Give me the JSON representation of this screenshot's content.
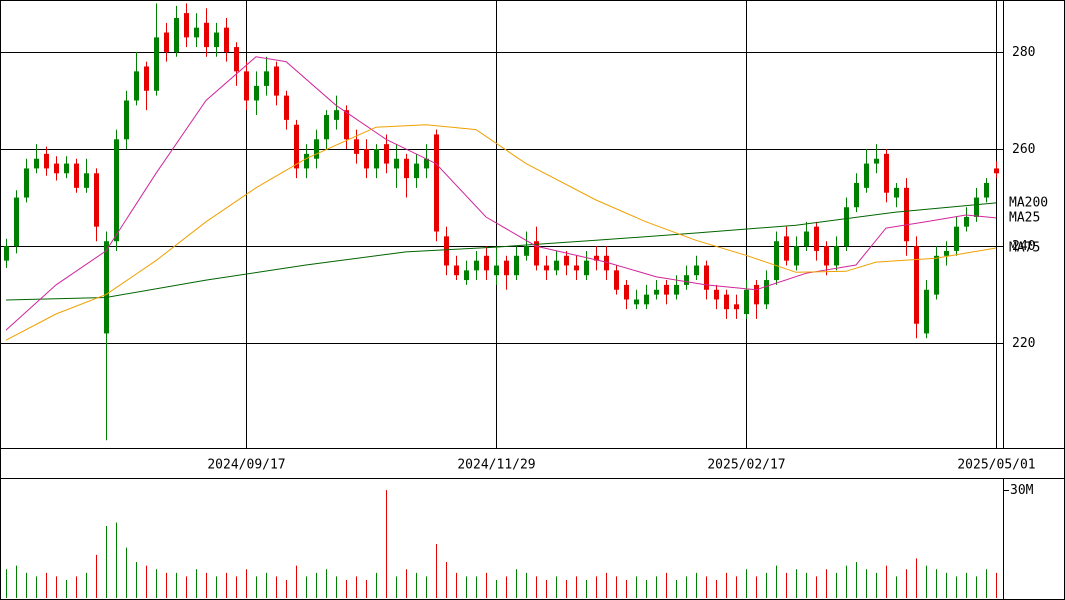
{
  "chart_data": {
    "type": "candlestick",
    "xlim": [
      -0.6,
      99.7
    ],
    "xticks": [
      {
        "value": 24,
        "label": "2024/09/17"
      },
      {
        "value": 49,
        "label": "2024/11/29"
      },
      {
        "value": 74,
        "label": "2025/02/17"
      },
      {
        "value": 99,
        "label": "2025/05/01"
      }
    ],
    "ylim": [
      198.4,
      290.7
    ],
    "yticks": [
      220,
      240,
      260,
      280
    ],
    "grid": true,
    "up_color": "#008000",
    "down_color": "#e60000",
    "open": [
      237,
      240,
      250,
      256,
      259,
      257,
      255,
      257,
      252,
      255,
      222,
      241,
      262,
      270,
      277,
      272,
      284,
      280,
      288,
      283,
      286,
      281,
      285,
      281,
      276,
      270,
      273,
      277,
      271,
      265,
      256,
      258,
      262,
      266,
      268,
      262,
      260,
      256,
      261,
      256,
      258,
      254,
      256,
      263,
      242,
      236,
      233,
      235,
      238,
      234,
      237,
      234,
      238,
      241,
      236,
      235,
      238,
      236,
      234,
      238,
      238,
      235,
      232,
      228,
      228,
      230,
      232,
      230,
      232,
      234,
      236,
      231,
      230,
      228,
      226,
      232,
      228,
      233,
      242,
      236,
      240,
      244,
      240,
      236,
      240,
      248,
      252,
      257,
      259,
      250,
      252,
      240,
      222,
      230,
      238,
      239,
      244,
      246,
      250,
      256
    ],
    "high": [
      241.5,
      251.5,
      258,
      261,
      260.5,
      258.5,
      258.5,
      258,
      258,
      256,
      243,
      264,
      272,
      280,
      278,
      290,
      286,
      289.5,
      290,
      288,
      289,
      286,
      287,
      282,
      278,
      276,
      279,
      278,
      272,
      266,
      261,
      264,
      268,
      271,
      269,
      264,
      262,
      261,
      263,
      261,
      259,
      259,
      261,
      264,
      244,
      238,
      237,
      239,
      240,
      240,
      238,
      240,
      243,
      244,
      238,
      239,
      239,
      238,
      239,
      240,
      240,
      236,
      233,
      231,
      232,
      233,
      233,
      234,
      236,
      238,
      237,
      232,
      231,
      230,
      233,
      233,
      235,
      243,
      244,
      242,
      245,
      245,
      241,
      242,
      250,
      255,
      260,
      261,
      260,
      253,
      254,
      242,
      233,
      240,
      241,
      246,
      248,
      252,
      254,
      257.5
    ],
    "low": [
      235.5,
      238.5,
      249,
      255,
      254.5,
      253.5,
      254,
      251,
      251,
      241,
      200,
      239,
      260,
      269,
      268,
      271,
      278,
      279,
      281,
      281,
      279,
      279,
      278,
      273,
      268,
      267,
      271,
      269,
      264,
      254,
      254,
      256,
      260,
      264,
      260,
      257,
      254,
      254,
      255,
      252,
      250,
      252,
      254,
      241,
      234,
      233,
      232,
      233,
      233,
      232,
      231,
      233,
      237,
      235,
      233,
      234,
      234,
      233,
      233,
      235,
      233,
      230,
      227,
      227,
      227,
      229,
      228,
      229,
      231,
      233,
      229,
      227,
      225,
      225,
      225,
      225,
      227,
      232,
      236,
      235,
      239,
      237,
      234,
      235,
      239,
      247,
      251,
      255,
      249,
      248,
      238,
      221,
      221,
      229,
      236,
      238,
      243,
      245,
      249,
      254
    ],
    "close": [
      240,
      250,
      256,
      258,
      256,
      255,
      257,
      252,
      255,
      244,
      241,
      262,
      270,
      276,
      272,
      283,
      280,
      287,
      283,
      285,
      281,
      284,
      280,
      276,
      270,
      273,
      276,
      271,
      266,
      256,
      259,
      262,
      267,
      268,
      262,
      259,
      256,
      260,
      257,
      258,
      254,
      257,
      258,
      243,
      236,
      234,
      235,
      237,
      235,
      236,
      234,
      238,
      240,
      236,
      235,
      237,
      236,
      235,
      237,
      237,
      235,
      231,
      229,
      229,
      230,
      231,
      230,
      232,
      234,
      236,
      231,
      229,
      227,
      227,
      231,
      228,
      233,
      241,
      237,
      240,
      243,
      239,
      236,
      240,
      248,
      253,
      257,
      258,
      251,
      252,
      241,
      224,
      231,
      238,
      239,
      244,
      246,
      250,
      253,
      255
    ],
    "series": [
      {
        "name": "MA200",
        "color": "#006400",
        "x": [
          0,
          10,
          20,
          30,
          40,
          49,
          59,
          69,
          79,
          89,
          99
        ],
        "values": [
          228.9,
          229.4,
          233,
          236.1,
          238.8,
          239.8,
          241.2,
          242.7,
          244.3,
          247,
          248.9
        ]
      },
      {
        "name": "MA25",
        "color": "#d0259a",
        "x": [
          0,
          5,
          10,
          15,
          20,
          25,
          28,
          33,
          38,
          43,
          48,
          53,
          60,
          65,
          70,
          75,
          80,
          85,
          88,
          92,
          96,
          99
        ],
        "values": [
          222.7,
          232,
          239,
          255,
          270,
          279,
          278,
          269,
          262,
          257,
          246,
          240,
          236.7,
          233.7,
          232,
          231,
          234.4,
          236.1,
          243.7,
          245,
          246.4,
          245.8
        ]
      },
      {
        "name": "MA75",
        "color": "#f0a000",
        "x": [
          0,
          5,
          10,
          15,
          20,
          25,
          30,
          37,
          42,
          47,
          52,
          59,
          64,
          69,
          74,
          79,
          84,
          87,
          93,
          99
        ],
        "values": [
          220.6,
          226,
          230,
          237,
          245,
          252,
          258,
          264.5,
          265,
          264,
          257,
          249.5,
          245,
          241.2,
          238.1,
          234.6,
          234.8,
          236.7,
          237.5,
          239.6
        ]
      }
    ],
    "volume": [
      8,
      9,
      7,
      6,
      7,
      6,
      5,
      6,
      7,
      12,
      20,
      21,
      14,
      10,
      9,
      8,
      7,
      7,
      6,
      8,
      7,
      6,
      7,
      6,
      8,
      6,
      7,
      6,
      5,
      9,
      6,
      7,
      8,
      6,
      5,
      6,
      5,
      7,
      30,
      6,
      8,
      7,
      6,
      15,
      10,
      7,
      6,
      6,
      7,
      5,
      6,
      8,
      7,
      6,
      5,
      6,
      5,
      6,
      5,
      6,
      7,
      6,
      5,
      6,
      5,
      6,
      7,
      5,
      6,
      7,
      6,
      5,
      7,
      6,
      8,
      6,
      7,
      9,
      7,
      8,
      7,
      6,
      8,
      7,
      9,
      10,
      8,
      7,
      9,
      6,
      8,
      11,
      9,
      8,
      7,
      6,
      7,
      6,
      8,
      7
    ],
    "volume_ylim": [
      0,
      32.8
    ],
    "volume_yticks": [
      {
        "value": 30,
        "label": "30M"
      }
    ]
  }
}
